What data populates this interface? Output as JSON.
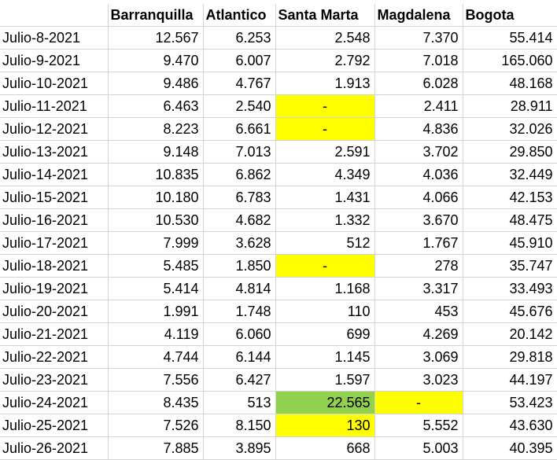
{
  "sheet": {
    "headers": [
      "",
      "Barranquilla",
      "Atlantico",
      "Santa Marta",
      "Magdalena",
      "Bogota"
    ],
    "rows": [
      {
        "date": "Julio-8-2021",
        "values": [
          "12.567",
          "6.253",
          "2.548",
          "7.370",
          "55.414"
        ]
      },
      {
        "date": "Julio-9-2021",
        "values": [
          "9.470",
          "6.007",
          "2.792",
          "7.018",
          "165.060"
        ]
      },
      {
        "date": "Julio-10-2021",
        "values": [
          "9.486",
          "4.767",
          "1.913",
          "6.028",
          "48.168"
        ]
      },
      {
        "date": "Julio-11-2021",
        "values": [
          "6.463",
          "2.540",
          "-",
          "2.411",
          "28.911"
        ]
      },
      {
        "date": "Julio-12-2021",
        "values": [
          "8.223",
          "6.661",
          "-",
          "4.836",
          "32.026"
        ]
      },
      {
        "date": "Julio-13-2021",
        "values": [
          "9.148",
          "7.013",
          "2.591",
          "3.702",
          "29.850"
        ]
      },
      {
        "date": "Julio-14-2021",
        "values": [
          "10.835",
          "6.862",
          "4.349",
          "4.036",
          "32.449"
        ]
      },
      {
        "date": "Julio-15-2021",
        "values": [
          "10.180",
          "6.783",
          "1.431",
          "4.066",
          "42.153"
        ]
      },
      {
        "date": "Julio-16-2021",
        "values": [
          "10.530",
          "4.682",
          "1.332",
          "3.670",
          "48.475"
        ]
      },
      {
        "date": "Julio-17-2021",
        "values": [
          "7.999",
          "3.628",
          "512",
          "1.767",
          "45.910"
        ]
      },
      {
        "date": "Julio-18-2021",
        "values": [
          "5.485",
          "1.850",
          "-",
          "278",
          "35.747"
        ]
      },
      {
        "date": "Julio-19-2021",
        "values": [
          "5.414",
          "4.814",
          "1.168",
          "3.317",
          "33.493"
        ]
      },
      {
        "date": "Julio-20-2021",
        "values": [
          "1.991",
          "1.748",
          "110",
          "453",
          "45.676"
        ]
      },
      {
        "date": "Julio-21-2021",
        "values": [
          "4.119",
          "6.060",
          "699",
          "4.269",
          "20.142"
        ]
      },
      {
        "date": "Julio-22-2021",
        "values": [
          "4.744",
          "6.144",
          "1.145",
          "3.069",
          "29.818"
        ]
      },
      {
        "date": "Julio-23-2021",
        "values": [
          "7.556",
          "6.427",
          "1.597",
          "3.023",
          "44.197"
        ]
      },
      {
        "date": "Julio-24-2021",
        "values": [
          "8.435",
          "513",
          "22.565",
          "-",
          "53.423"
        ]
      },
      {
        "date": "Julio-25-2021",
        "values": [
          "7.526",
          "8.150",
          "130",
          "5.552",
          "43.630"
        ]
      },
      {
        "date": "Julio-26-2021",
        "values": [
          "7.885",
          "3.895",
          "668",
          "5.003",
          "40.395"
        ]
      }
    ]
  },
  "highlights": {
    "yellow": "#ffff00",
    "green": "#92d050"
  }
}
